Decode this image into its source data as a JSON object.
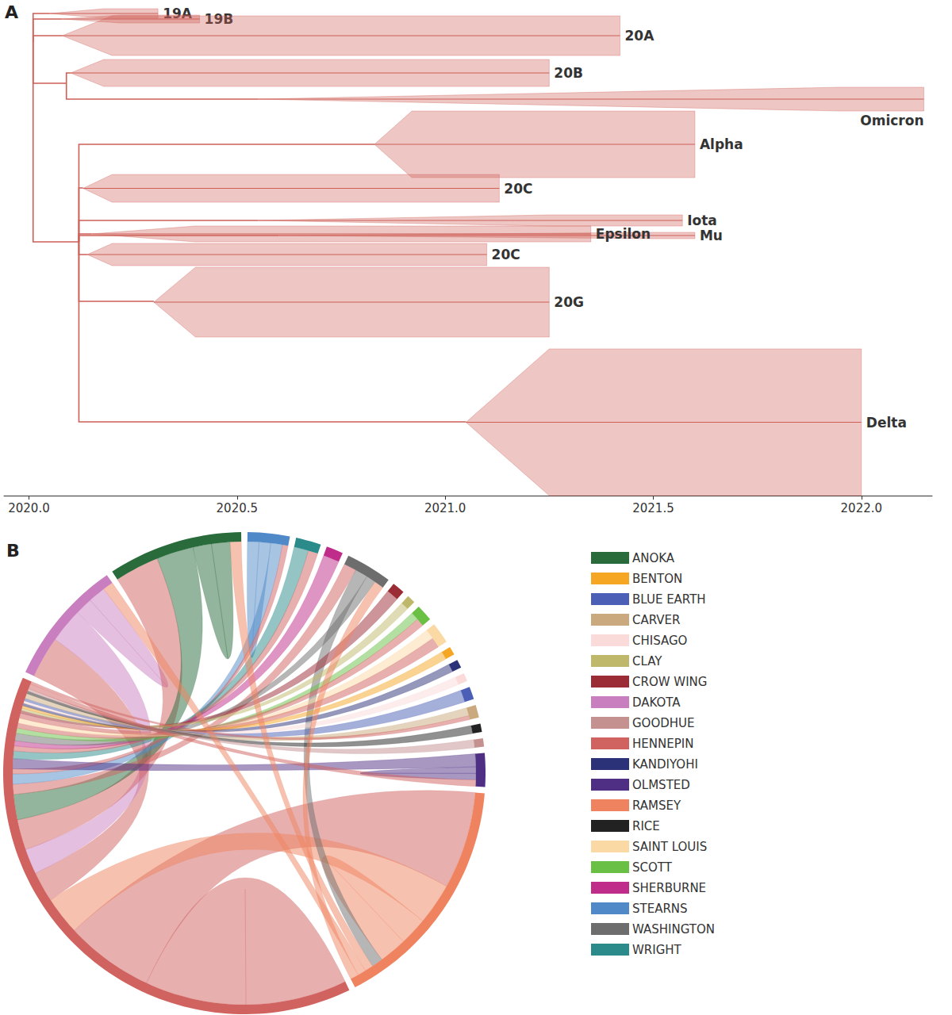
{
  "chart_data": [
    {
      "type": "tree",
      "label": "A",
      "color": "#cd5f57",
      "xlim": [
        2019.94,
        2022.17
      ],
      "xticks": [
        {
          "value": 2020,
          "label": "2020.0"
        },
        {
          "value": 2020.5,
          "label": "2020.5"
        },
        {
          "value": 2021,
          "label": "2021.0"
        },
        {
          "value": 2021.5,
          "label": "2021.5"
        },
        {
          "value": 2022,
          "label": "2022.0"
        }
      ],
      "ylim": [
        0,
        620
      ],
      "tick_labels": "x",
      "grid": false,
      "branches": [
        [
          2020.01,
          48,
          2020.05,
          12
        ],
        [
          2020.01,
          48,
          2020.08,
          19
        ],
        [
          2020.01,
          48,
          2020.08,
          40
        ],
        [
          2020.01,
          48,
          2020.09,
          100
        ],
        [
          2020.09,
          100,
          2020.1,
          87
        ],
        [
          2020.09,
          100,
          2020.55,
          120
        ],
        [
          2020.01,
          48,
          2020.12,
          300
        ],
        [
          2020.12,
          300,
          2020.83,
          177
        ],
        [
          2020.12,
          300,
          2020.13,
          232
        ],
        [
          2020.12,
          300,
          2020.55,
          273
        ],
        [
          2020.12,
          300,
          2020.6,
          292
        ],
        [
          2020.12,
          300,
          2020.15,
          290
        ],
        [
          2020.12,
          300,
          2020.14,
          316
        ],
        [
          2020.12,
          300,
          2020.3,
          375
        ],
        [
          2020.12,
          300,
          2021.05,
          527
        ]
      ],
      "clades": [
        {
          "label": "19A",
          "origin": 2020.05,
          "tip_start": 2020.18,
          "tip_end": 2020.31,
          "row_top": 6,
          "row_bottom": 18
        },
        {
          "label": "19B",
          "origin": 2020.08,
          "tip_start": 2020.22,
          "tip_end": 2020.41,
          "row_top": 14,
          "row_bottom": 24
        },
        {
          "label": "20A",
          "origin": 2020.08,
          "tip_start": 2020.2,
          "tip_end": 2021.42,
          "row_top": 15,
          "row_bottom": 65
        },
        {
          "label": "20B",
          "origin": 2020.1,
          "tip_start": 2020.18,
          "tip_end": 2021.25,
          "row_top": 70,
          "row_bottom": 104
        },
        {
          "label": "Omicron",
          "origin": 2020.55,
          "tip_start": 2021.95,
          "tip_end": 2022.15,
          "row_top": 105,
          "row_bottom": 135
        },
        {
          "label": "Alpha",
          "origin": 2020.83,
          "tip_start": 2020.92,
          "tip_end": 2021.6,
          "row_top": 135,
          "row_bottom": 219
        },
        {
          "label": "20C",
          "origin": 2020.13,
          "tip_start": 2020.2,
          "tip_end": 2021.13,
          "row_top": 215,
          "row_bottom": 250
        },
        {
          "label": "Iota",
          "origin": 2020.55,
          "tip_start": 2021.25,
          "tip_end": 2021.57,
          "row_top": 266,
          "row_bottom": 280
        },
        {
          "label": "Mu",
          "origin": 2020.6,
          "tip_start": 2021.5,
          "tip_end": 2021.6,
          "row_top": 288,
          "row_bottom": 296
        },
        {
          "label": "Epsilon",
          "origin": 2020.15,
          "tip_start": 2020.4,
          "tip_end": 2021.35,
          "row_top": 280,
          "row_bottom": 300
        },
        {
          "label": "20C",
          "origin": 2020.14,
          "tip_start": 2020.2,
          "tip_end": 2021.1,
          "row_top": 302,
          "row_bottom": 330
        },
        {
          "label": "20G",
          "origin": 2020.3,
          "tip_start": 2020.4,
          "tip_end": 2021.25,
          "row_top": 332,
          "row_bottom": 420
        },
        {
          "label": "Delta",
          "origin": 2021.05,
          "tip_start": 2021.25,
          "tip_end": 2022.0,
          "row_top": 435,
          "row_bottom": 620
        }
      ]
    },
    {
      "type": "chord",
      "label": "B",
      "legend": "right",
      "nodes": [
        {
          "name": "ANOKA",
          "color": "#2a6b3c",
          "weight": 32
        },
        {
          "name": "BENTON",
          "color": "#f5a623",
          "weight": 2
        },
        {
          "name": "BLUE EARTH",
          "color": "#4a5fb5",
          "weight": 3
        },
        {
          "name": "CARVER",
          "color": "#c9a97d",
          "weight": 3
        },
        {
          "name": "CHISAGO",
          "color": "#fbdada",
          "weight": 2
        },
        {
          "name": "CLAY",
          "color": "#bfb86a",
          "weight": 2
        },
        {
          "name": "CROW WING",
          "color": "#9b2c36",
          "weight": 3
        },
        {
          "name": "DAKOTA",
          "color": "#c97fbf",
          "weight": 30
        },
        {
          "name": "GOODHUE",
          "color": "#c49090",
          "weight": 2
        },
        {
          "name": "HENNEPIN",
          "color": "#d0625f",
          "weight": 137
        },
        {
          "name": "KANDIYOHI",
          "color": "#2c3278",
          "weight": 2
        },
        {
          "name": "OLMSTED",
          "color": "#4f2f84",
          "weight": 8
        },
        {
          "name": "RAMSEY",
          "color": "#ef8360",
          "weight": 57
        },
        {
          "name": "RICE",
          "color": "#222222",
          "weight": 2
        },
        {
          "name": "SAINT LOUIS",
          "color": "#fbd9a5",
          "weight": 5
        },
        {
          "name": "SCOTT",
          "color": "#6abf45",
          "weight": 4
        },
        {
          "name": "SHERBURNE",
          "color": "#c02c8a",
          "weight": 4
        },
        {
          "name": "STEARNS",
          "color": "#4f89c7",
          "weight": 10
        },
        {
          "name": "WASHINGTON",
          "color": "#6d6d6d",
          "weight": 11
        },
        {
          "name": "WRIGHT",
          "color": "#2b8a8a",
          "weight": 6
        }
      ],
      "ring_order": [
        "STEARNS",
        "WRIGHT",
        "SHERBURNE",
        "WASHINGTON",
        "CROW WING",
        "CLAY",
        "SCOTT",
        "SAINT LOUIS",
        "BENTON",
        "KANDIYOHI",
        "CHISAGO",
        "BLUE EARTH",
        "CARVER",
        "RICE",
        "GOODHUE",
        "OLMSTED",
        "RAMSEY",
        "HENNEPIN",
        "DAKOTA",
        "ANOKA"
      ],
      "flows": [
        {
          "source": "HENNEPIN",
          "target": "HENNEPIN",
          "value": 40
        },
        {
          "source": "HENNEPIN",
          "target": "RAMSEY",
          "value": 35
        },
        {
          "source": "RAMSEY",
          "target": "HENNEPIN",
          "value": 15
        },
        {
          "source": "RAMSEY",
          "target": "RAMSEY",
          "value": 10
        },
        {
          "source": "HENNEPIN",
          "target": "DAKOTA",
          "value": 12
        },
        {
          "source": "DAKOTA",
          "target": "HENNEPIN",
          "value": 10
        },
        {
          "source": "DAKOTA",
          "target": "DAKOTA",
          "value": 5
        },
        {
          "source": "HENNEPIN",
          "target": "ANOKA",
          "value": 12
        },
        {
          "source": "ANOKA",
          "target": "HENNEPIN",
          "value": 10
        },
        {
          "source": "ANOKA",
          "target": "ANOKA",
          "value": 5
        },
        {
          "source": "HENNEPIN",
          "target": "WASHINGTON",
          "value": 4
        },
        {
          "source": "WASHINGTON",
          "target": "RAMSEY",
          "value": 4
        },
        {
          "source": "STEARNS",
          "target": "STEARNS",
          "value": 4
        },
        {
          "source": "STEARNS",
          "target": "HENNEPIN",
          "value": 4
        },
        {
          "source": "HENNEPIN",
          "target": "STEARNS",
          "value": 2
        },
        {
          "source": "OLMSTED",
          "target": "HENNEPIN",
          "value": 4
        },
        {
          "source": "OLMSTED",
          "target": "OLMSTED",
          "value": 2
        },
        {
          "source": "WRIGHT",
          "target": "HENNEPIN",
          "value": 3
        },
        {
          "source": "HENNEPIN",
          "target": "WRIGHT",
          "value": 2
        },
        {
          "source": "SHERBURNE",
          "target": "HENNEPIN",
          "value": 2
        },
        {
          "source": "WASHINGTON",
          "target": "HENNEPIN",
          "value": 3
        },
        {
          "source": "SCOTT",
          "target": "HENNEPIN",
          "value": 2
        },
        {
          "source": "HENNEPIN",
          "target": "SCOTT",
          "value": 2
        },
        {
          "source": "SAINT LOUIS",
          "target": "HENNEPIN",
          "value": 2
        },
        {
          "source": "HENNEPIN",
          "target": "SAINT LOUIS",
          "value": 2
        },
        {
          "source": "CROW WING",
          "target": "HENNEPIN",
          "value": 1
        },
        {
          "source": "CLAY",
          "target": "HENNEPIN",
          "value": 1
        },
        {
          "source": "BENTON",
          "target": "HENNEPIN",
          "value": 1
        },
        {
          "source": "KANDIYOHI",
          "target": "HENNEPIN",
          "value": 1
        },
        {
          "source": "CHISAGO",
          "target": "HENNEPIN",
          "value": 1
        },
        {
          "source": "BLUE EARTH",
          "target": "HENNEPIN",
          "value": 1
        },
        {
          "source": "CARVER",
          "target": "HENNEPIN",
          "value": 2
        },
        {
          "source": "RICE",
          "target": "HENNEPIN",
          "value": 1
        },
        {
          "source": "GOODHUE",
          "target": "HENNEPIN",
          "value": 1
        },
        {
          "source": "HENNEPIN",
          "target": "OLMSTED",
          "value": 2
        },
        {
          "source": "HENNEPIN",
          "target": "CARVER",
          "value": 1
        },
        {
          "source": "RAMSEY",
          "target": "ANOKA",
          "value": 3
        },
        {
          "source": "RAMSEY",
          "target": "DAKOTA",
          "value": 3
        },
        {
          "source": "RAMSEY",
          "target": "WASHINGTON",
          "value": 3
        }
      ]
    }
  ]
}
